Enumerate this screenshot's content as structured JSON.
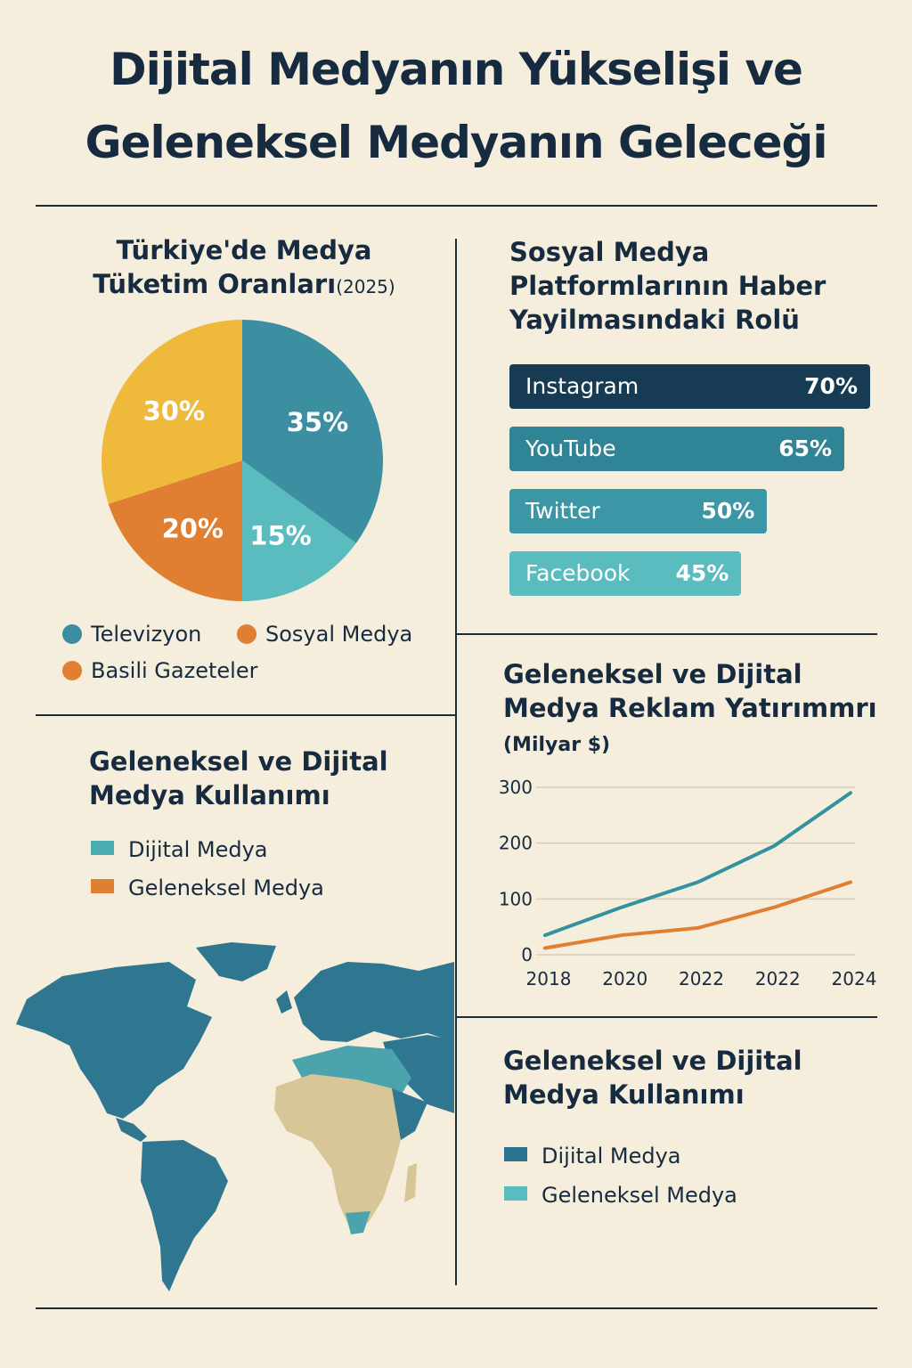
{
  "title": {
    "line1": "Dijital Medyanın Yükselişi ve",
    "line2": "Geleneksel Medyanın Geleceği"
  },
  "pie_section": {
    "title_line1": "Türkiye'de Medya",
    "title_line2": "Tüketim Oranları",
    "year": "(2025)",
    "legend": [
      {
        "label": "Televizyon",
        "color": "#3b8fa0"
      },
      {
        "label": "Sosyal Medya",
        "color": "#e07f32"
      },
      {
        "label": "Basili Gazeteler",
        "color": "#e07f32"
      }
    ]
  },
  "bar_section": {
    "title_line1": "Sosyal Medya",
    "title_line2": "Platformlarının Haber",
    "title_line3": "Yayilmasındaki Rolü"
  },
  "line_section": {
    "title_line1": "Geleneksel ve Dijital",
    "title_line2": "Medya Reklam Yatırımmrı",
    "unit": "(Milyar $)"
  },
  "usage_left": {
    "title_line1": "Geleneksel ve Dijital",
    "title_line2": "Medya Kullanımı",
    "legend": [
      {
        "label": "Dijital Medya",
        "color": "#4aabb1"
      },
      {
        "label": "Geleneksel Medya",
        "color": "#e07f32"
      }
    ]
  },
  "usage_right": {
    "title_line1": "Geleneksel ve Dijital",
    "title_line2": "Medya Kullanımı",
    "legend": [
      {
        "label": "Dijital Medya",
        "color": "#2d7390"
      },
      {
        "label": "Geleneksel Medya",
        "color": "#5bbcc0"
      }
    ]
  },
  "map": {
    "name": "world-map",
    "colors": {
      "ocean_land": "#2f7690",
      "mid": "#4aa3ad",
      "africa": "#d8c598"
    }
  },
  "chart_data": [
    {
      "type": "pie",
      "title": "Türkiye'de Medya Tüketim Oranları (2025)",
      "slices": [
        {
          "label": "35%",
          "value": 35,
          "color": "#3b8fa0"
        },
        {
          "label": "15%",
          "value": 15,
          "color": "#5bbcc0"
        },
        {
          "label": "20%",
          "value": 20,
          "color": "#e07f32"
        },
        {
          "label": "30%",
          "value": 30,
          "color": "#efb93c"
        }
      ]
    },
    {
      "type": "bar",
      "orientation": "horizontal",
      "title": "Sosyal Medya Platformlarının Haber Yayilmasındaki Rolü",
      "categories": [
        "Instagram",
        "YouTube",
        "Twitter",
        "Facebook"
      ],
      "values": [
        70,
        65,
        50,
        45
      ],
      "value_labels": [
        "70%",
        "65%",
        "50%",
        "45%"
      ],
      "colors": [
        "#173b52",
        "#2f8596",
        "#3b97a6",
        "#5bbcc0"
      ]
    },
    {
      "type": "line",
      "title": "Geleneksel ve Dijital Medya Reklam Yatırımmrı",
      "ylabel": "(Milyar $)",
      "categories": [
        "2018",
        "2020",
        "2022",
        "2022",
        "2024"
      ],
      "ylim": [
        0,
        300
      ],
      "yticks": [
        "0",
        "100",
        "200",
        "300"
      ],
      "grid": true,
      "series": [
        {
          "values": [
            35,
            85,
            130,
            195,
            290
          ],
          "color": "#3391a0"
        },
        {
          "values": [
            12,
            35,
            48,
            85,
            130
          ],
          "color": "#e07f32"
        }
      ]
    }
  ]
}
